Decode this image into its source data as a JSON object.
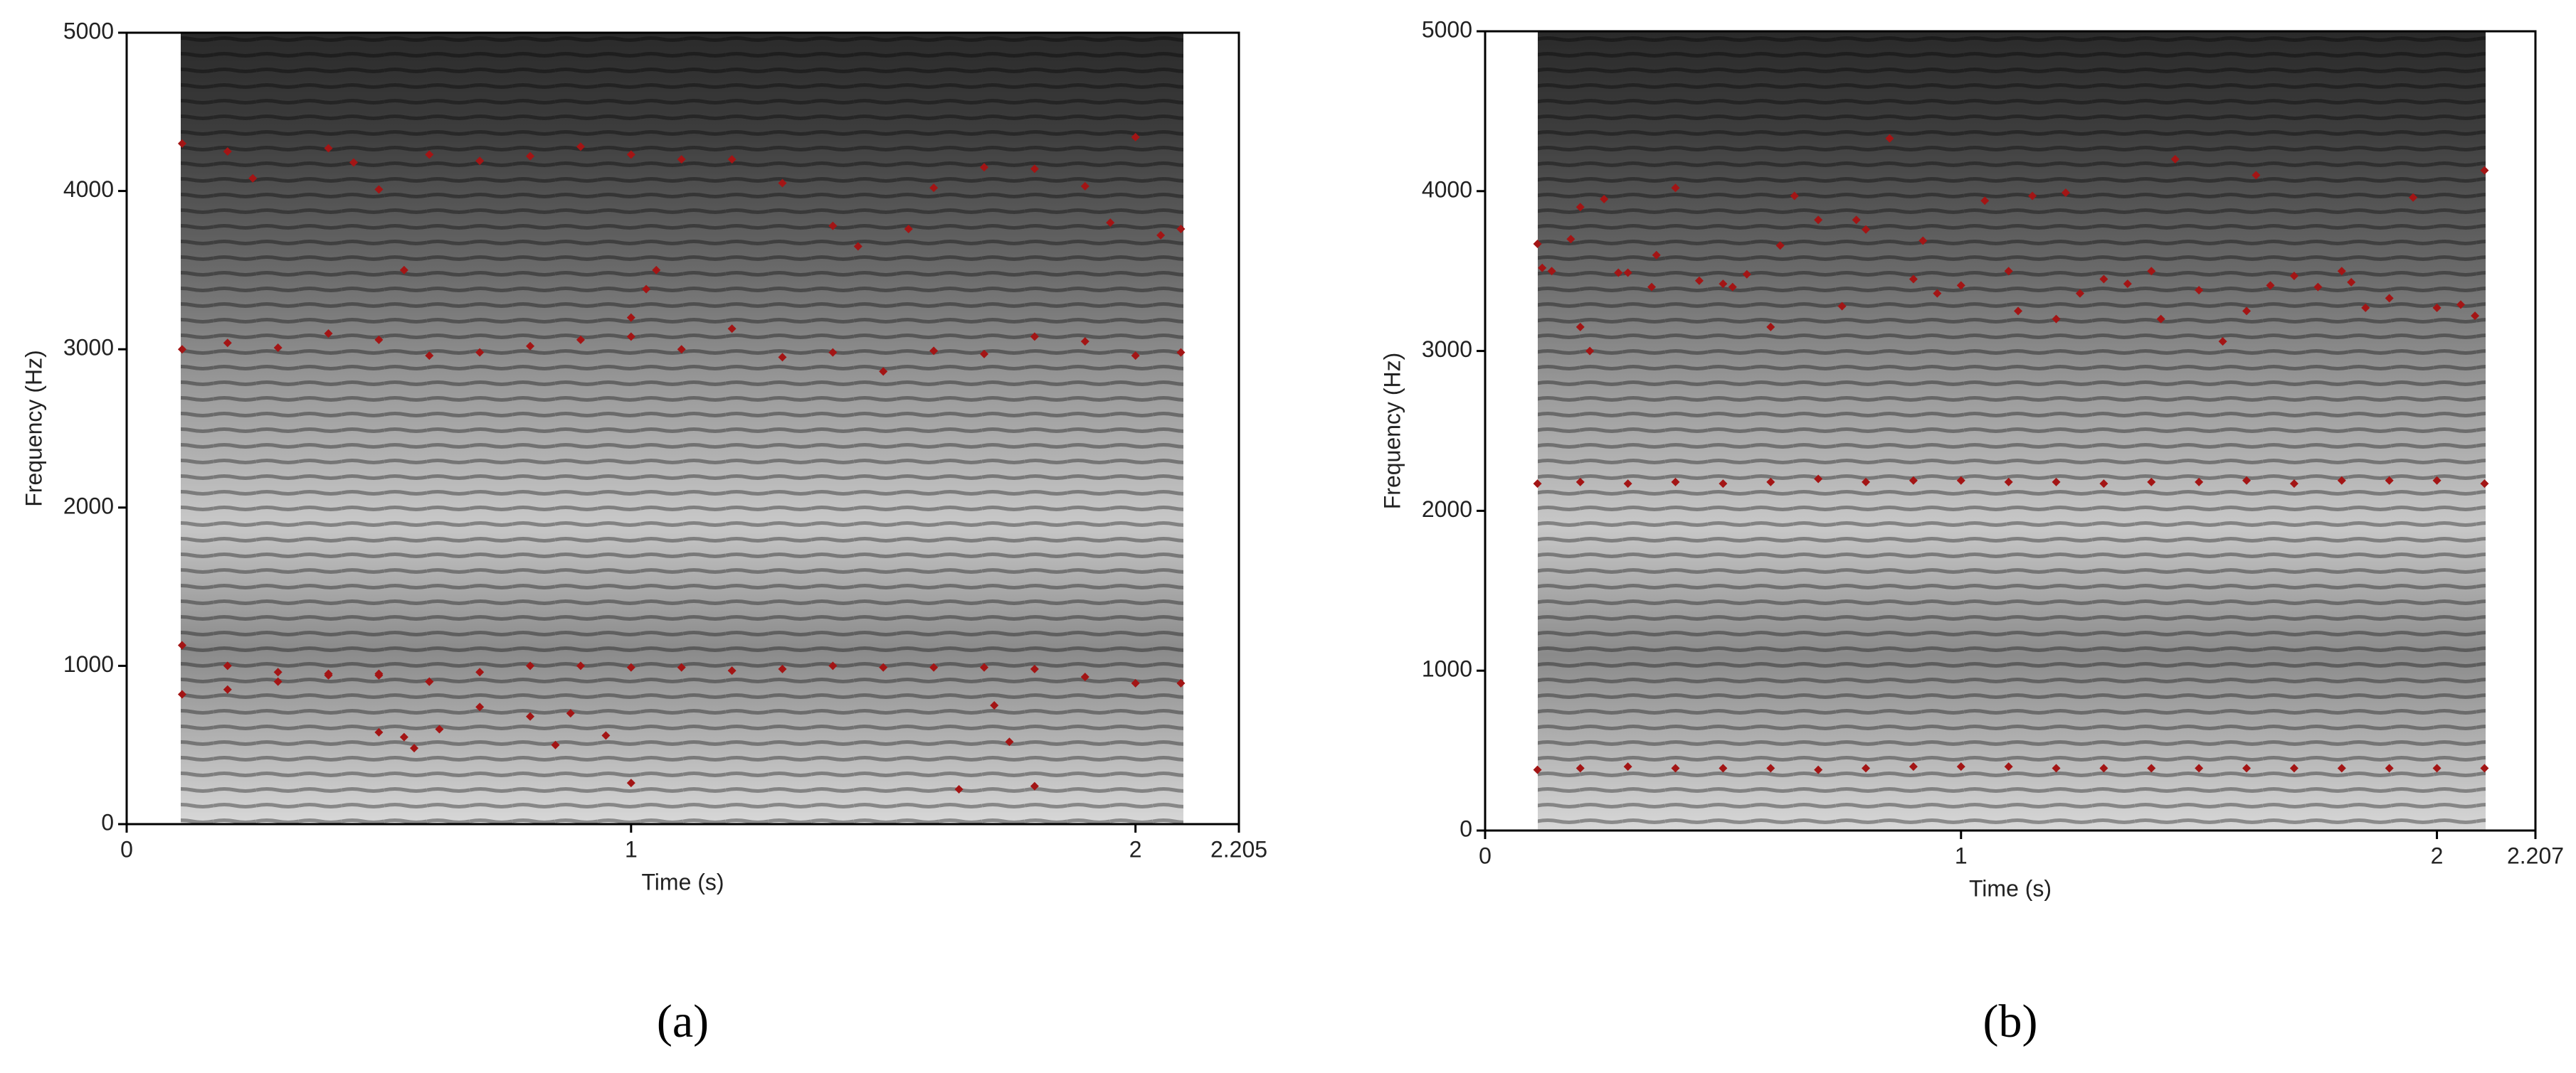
{
  "chart_data": [
    {
      "type": "scatter",
      "caption": "(a)",
      "x_label": "Time (s)",
      "y_label": "Frequency (Hz)",
      "xlim": [
        0,
        2.205
      ],
      "xticks": [
        0,
        1,
        2,
        2.205
      ],
      "ylim": [
        0,
        5000
      ],
      "yticks": [
        0,
        1000,
        2000,
        3000,
        4000,
        5000
      ],
      "series": [
        {
          "color": "#a31515",
          "x": [
            0.11,
            0.2,
            0.3,
            0.4,
            0.5,
            0.6,
            0.7,
            0.8,
            0.9,
            1.0,
            1.1,
            1.2,
            1.3,
            1.4,
            1.5,
            1.6,
            1.7,
            1.8,
            1.9,
            2.0,
            2.09
          ],
          "values": [
            1130,
            1000,
            960,
            950,
            940,
            900,
            960,
            1000,
            1000,
            990,
            990,
            970,
            980,
            1000,
            990,
            990,
            990,
            980,
            930,
            890,
            890
          ]
        },
        {
          "color": "#a31515",
          "x": [
            0.11,
            0.2,
            0.3,
            0.4,
            0.5,
            0.6,
            0.7,
            0.8,
            0.5,
            0.55,
            0.57,
            0.62,
            0.85,
            0.88,
            0.95,
            1.0,
            1.65,
            1.72,
            1.75,
            1.8
          ],
          "values": [
            820,
            850,
            900,
            940,
            950,
            900,
            740,
            680,
            580,
            550,
            480,
            600,
            500,
            700,
            560,
            260,
            220,
            750,
            520,
            240
          ]
        },
        {
          "color": "#a31515",
          "x": [
            0.11,
            0.2,
            0.3,
            0.4,
            0.5,
            0.6,
            0.7,
            0.8,
            0.9,
            1.0,
            1.1,
            1.2,
            1.3,
            1.4,
            1.5,
            1.6,
            1.7,
            1.8,
            1.9,
            2.0,
            2.09,
            1.0,
            1.03,
            1.05,
            0.55
          ],
          "values": [
            3000,
            3040,
            3010,
            3100,
            3060,
            2960,
            2980,
            3020,
            3060,
            3080,
            3000,
            3130,
            2950,
            2980,
            2860,
            2990,
            2970,
            3080,
            3050,
            2960,
            2980,
            3200,
            3380,
            3500,
            3500
          ]
        },
        {
          "color": "#a31515",
          "x": [
            0.11,
            0.2,
            0.25,
            0.4,
            0.45,
            0.5,
            0.6,
            0.7,
            0.8,
            0.9,
            1.0,
            1.1,
            1.2,
            1.3,
            1.4,
            1.45,
            1.55,
            1.6,
            1.7,
            1.8,
            1.9,
            1.95,
            2.0,
            2.05,
            2.09
          ],
          "values": [
            4300,
            4250,
            4080,
            4270,
            4180,
            4010,
            4230,
            4190,
            4220,
            4280,
            4230,
            4200,
            4200,
            4050,
            3780,
            3650,
            3760,
            4020,
            4150,
            4140,
            4030,
            3800,
            4340,
            3720,
            3760
          ]
        }
      ]
    },
    {
      "type": "scatter",
      "caption": "(b)",
      "x_label": "Time (s)",
      "y_label": "Frequency (Hz)",
      "xlim": [
        0,
        2.207
      ],
      "xticks": [
        0,
        1,
        2,
        2.207
      ],
      "ylim": [
        0,
        5000
      ],
      "yticks": [
        0,
        1000,
        2000,
        3000,
        4000,
        5000
      ],
      "series": [
        {
          "color": "#a31515",
          "x": [
            0.11,
            0.2,
            0.3,
            0.4,
            0.5,
            0.6,
            0.7,
            0.8,
            0.9,
            1.0,
            1.1,
            1.2,
            1.3,
            1.4,
            1.5,
            1.6,
            1.7,
            1.8,
            1.9,
            2.0,
            2.1
          ],
          "values": [
            380,
            390,
            400,
            390,
            390,
            390,
            380,
            390,
            400,
            400,
            400,
            390,
            390,
            390,
            390,
            390,
            390,
            390,
            390,
            390,
            390
          ]
        },
        {
          "color": "#a31515",
          "x": [
            0.11,
            0.2,
            0.3,
            0.4,
            0.5,
            0.6,
            0.7,
            0.8,
            0.9,
            1.0,
            1.1,
            1.2,
            1.3,
            1.4,
            1.5,
            1.6,
            1.7,
            1.8,
            1.9,
            2.0,
            2.1
          ],
          "values": [
            2170,
            2180,
            2170,
            2180,
            2170,
            2180,
            2200,
            2180,
            2190,
            2190,
            2180,
            2180,
            2170,
            2180,
            2180,
            2190,
            2170,
            2190,
            2190,
            2190,
            2170
          ]
        },
        {
          "color": "#a31515",
          "x": [
            0.11,
            0.14,
            0.18,
            0.2,
            0.22,
            0.25,
            0.3,
            0.35,
            0.4,
            0.45,
            0.5,
            0.55,
            0.6,
            0.65,
            0.7,
            0.75,
            0.8,
            0.85,
            0.9,
            0.95,
            1.0,
            1.05,
            1.1,
            1.15,
            1.2,
            1.25,
            1.3,
            1.35,
            1.4,
            1.45,
            1.5,
            1.55,
            1.6,
            1.65,
            1.7,
            1.75,
            1.8,
            1.85,
            1.9,
            1.95,
            2.0,
            2.05,
            2.1,
            0.12,
            0.2,
            0.28,
            0.36,
            0.52,
            0.62,
            0.78,
            0.92,
            1.12,
            1.22,
            1.42,
            1.62,
            1.82,
            2.08
          ],
          "values": [
            3670,
            3500,
            3700,
            3150,
            3000,
            3950,
            3490,
            3400,
            4020,
            3440,
            3420,
            3480,
            3150,
            3970,
            3820,
            3280,
            3760,
            4330,
            3450,
            3360,
            3410,
            3940,
            3500,
            3970,
            3200,
            3360,
            3450,
            3420,
            3500,
            4200,
            3380,
            3060,
            3250,
            3410,
            3470,
            3400,
            3500,
            3270,
            3330,
            3960,
            3270,
            3290,
            4130,
            3520,
            3900,
            3490,
            3600,
            3400,
            3660,
            3820,
            3690,
            3250,
            3990,
            3200,
            4100,
            3430,
            3220
          ]
        }
      ]
    }
  ]
}
